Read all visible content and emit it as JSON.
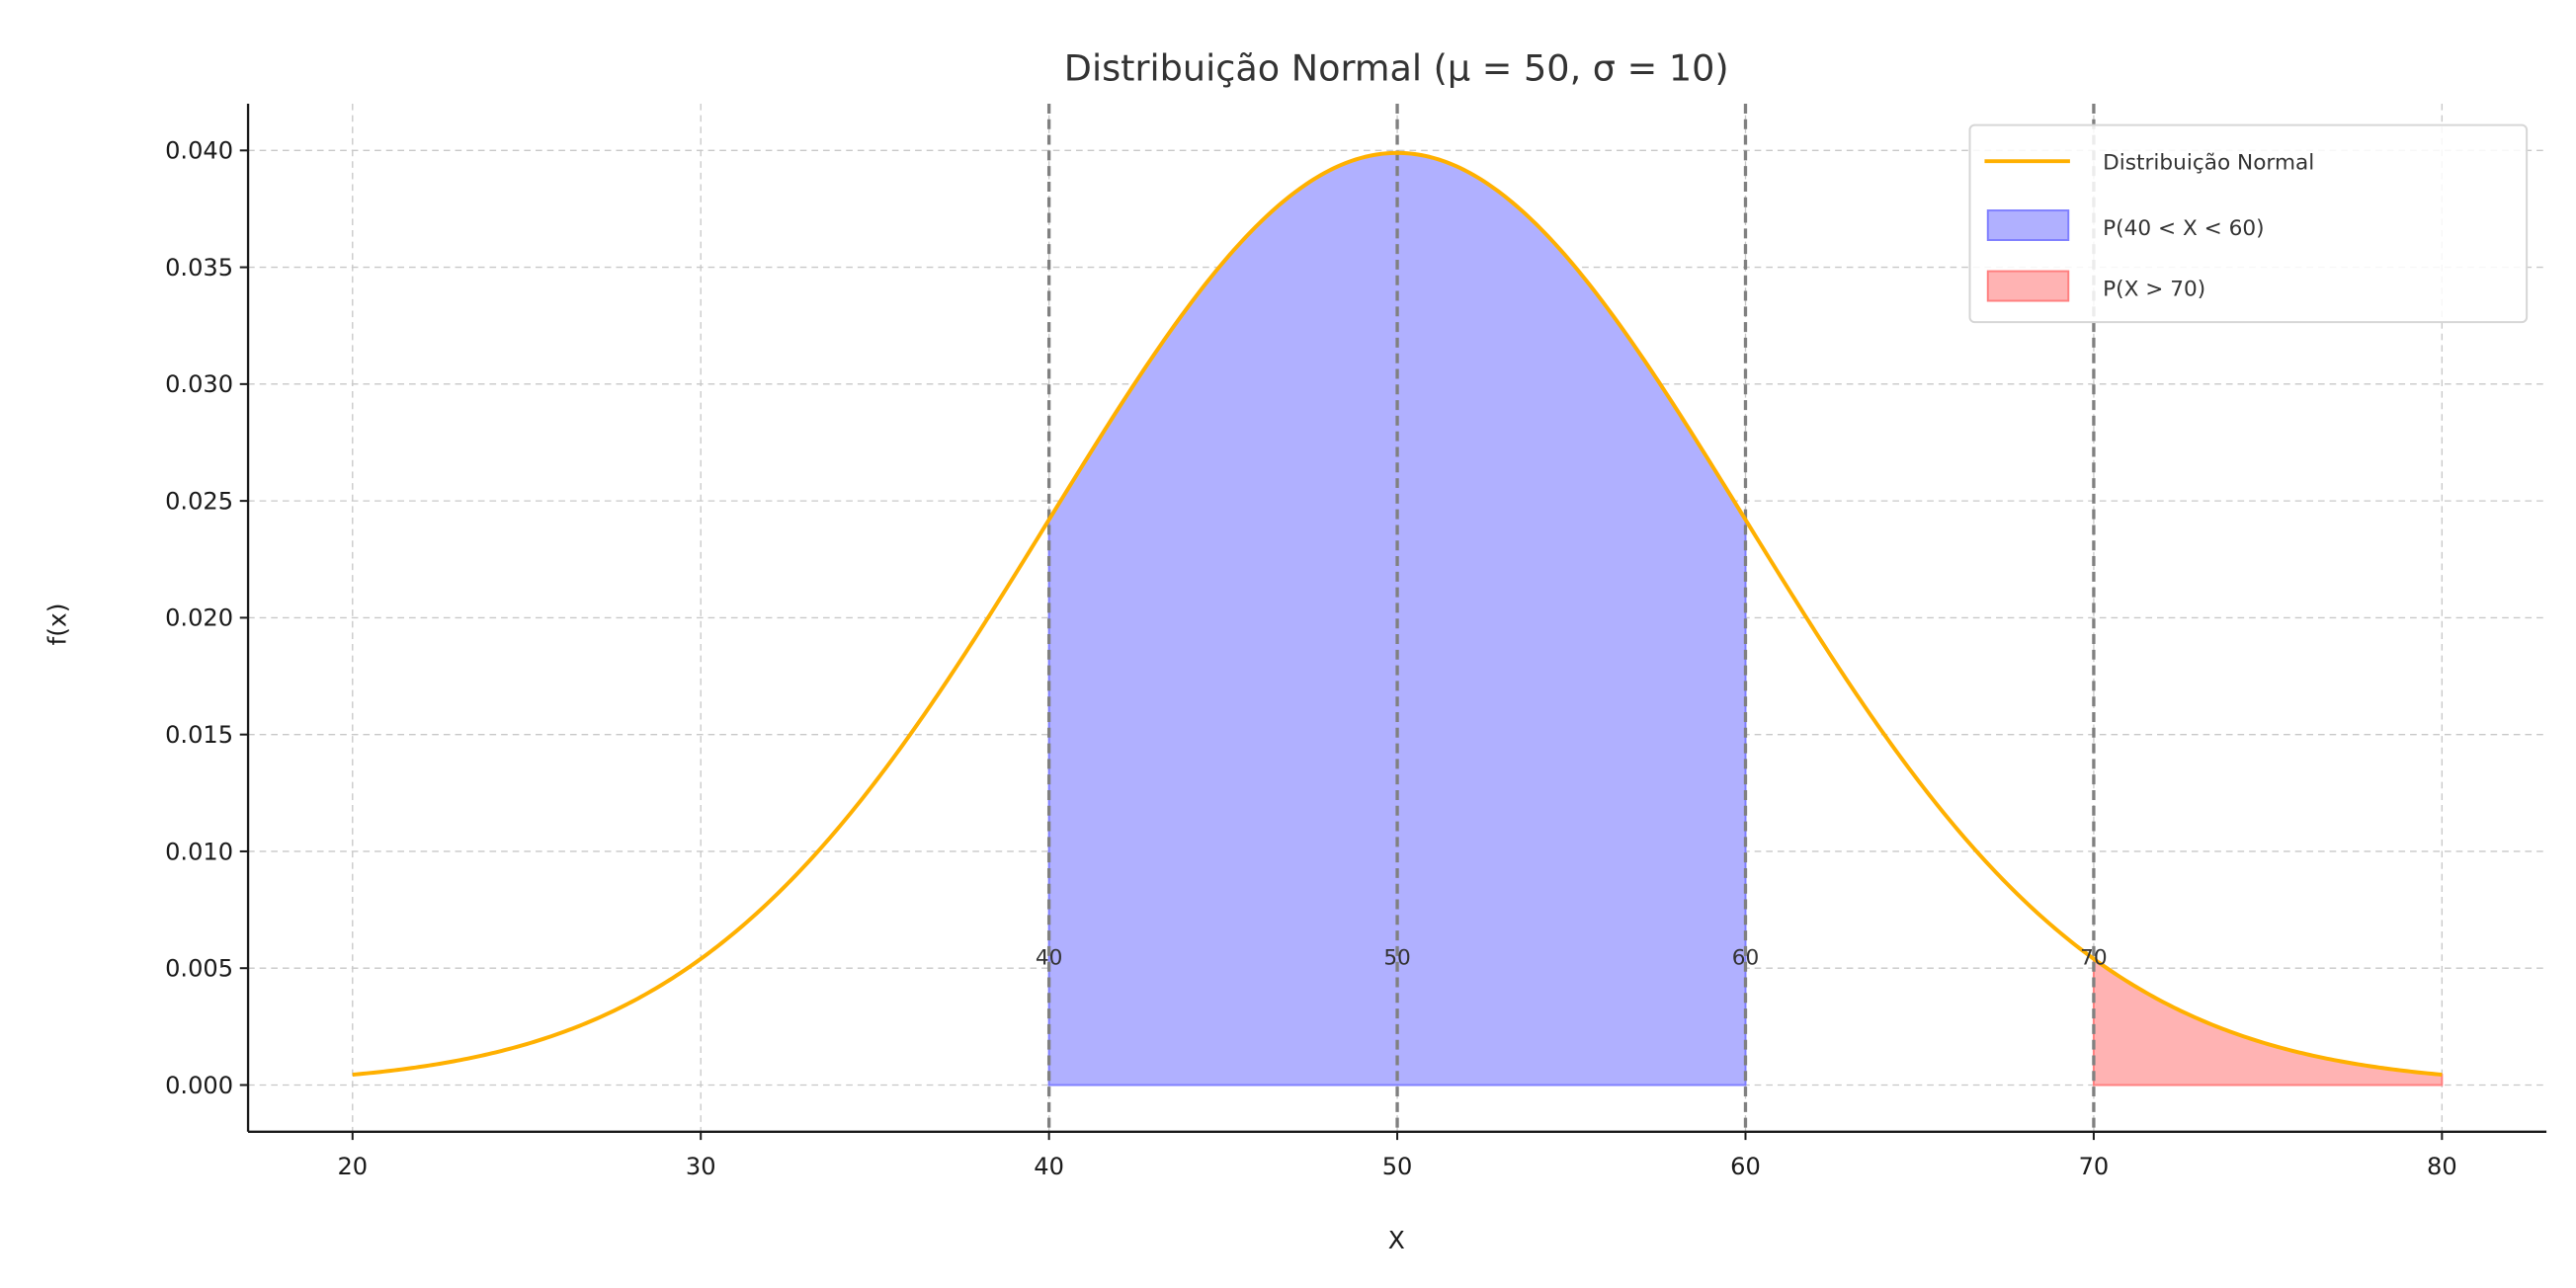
{
  "chart_data": {
    "type": "area",
    "title": "Distribuição Normal (μ = 50, σ = 10)",
    "xlabel": "X",
    "ylabel": "f(x)",
    "mu": 50,
    "sigma": 10,
    "x_range_plotted": [
      20,
      80
    ],
    "xlim": [
      17,
      83
    ],
    "ylim": [
      -0.002,
      0.042
    ],
    "xticks": [
      "20",
      "30",
      "40",
      "50",
      "60",
      "70",
      "80"
    ],
    "yticks": [
      "0.000",
      "0.005",
      "0.010",
      "0.015",
      "0.020",
      "0.025",
      "0.030",
      "0.035",
      "0.040"
    ],
    "grid": true,
    "legend_position": "top-right",
    "series": [
      {
        "name": "Distribuição Normal",
        "color": "#FFB000",
        "x": [
          20,
          25,
          30,
          35,
          40,
          45,
          50,
          55,
          60,
          65,
          70,
          75,
          80
        ],
        "y": [
          0.000443,
          0.001753,
          0.005399,
          0.012952,
          0.024197,
          0.035207,
          0.039894,
          0.035207,
          0.024197,
          0.012952,
          0.005399,
          0.001753,
          0.000443
        ]
      }
    ],
    "shaded_regions": [
      {
        "name": "P(40 < X < 60)",
        "from": 40,
        "to": 60,
        "fill": "#b0b0ff",
        "edge": "#8080ff"
      },
      {
        "name": "P(X > 70)",
        "from": 70,
        "to": 80,
        "fill": "#ffb3b3",
        "edge": "#ff8080"
      }
    ],
    "vertical_lines": [
      40,
      50,
      60,
      70
    ],
    "vertical_line_color": "#808080",
    "annotations": [
      "40",
      "50",
      "60",
      "70"
    ]
  }
}
